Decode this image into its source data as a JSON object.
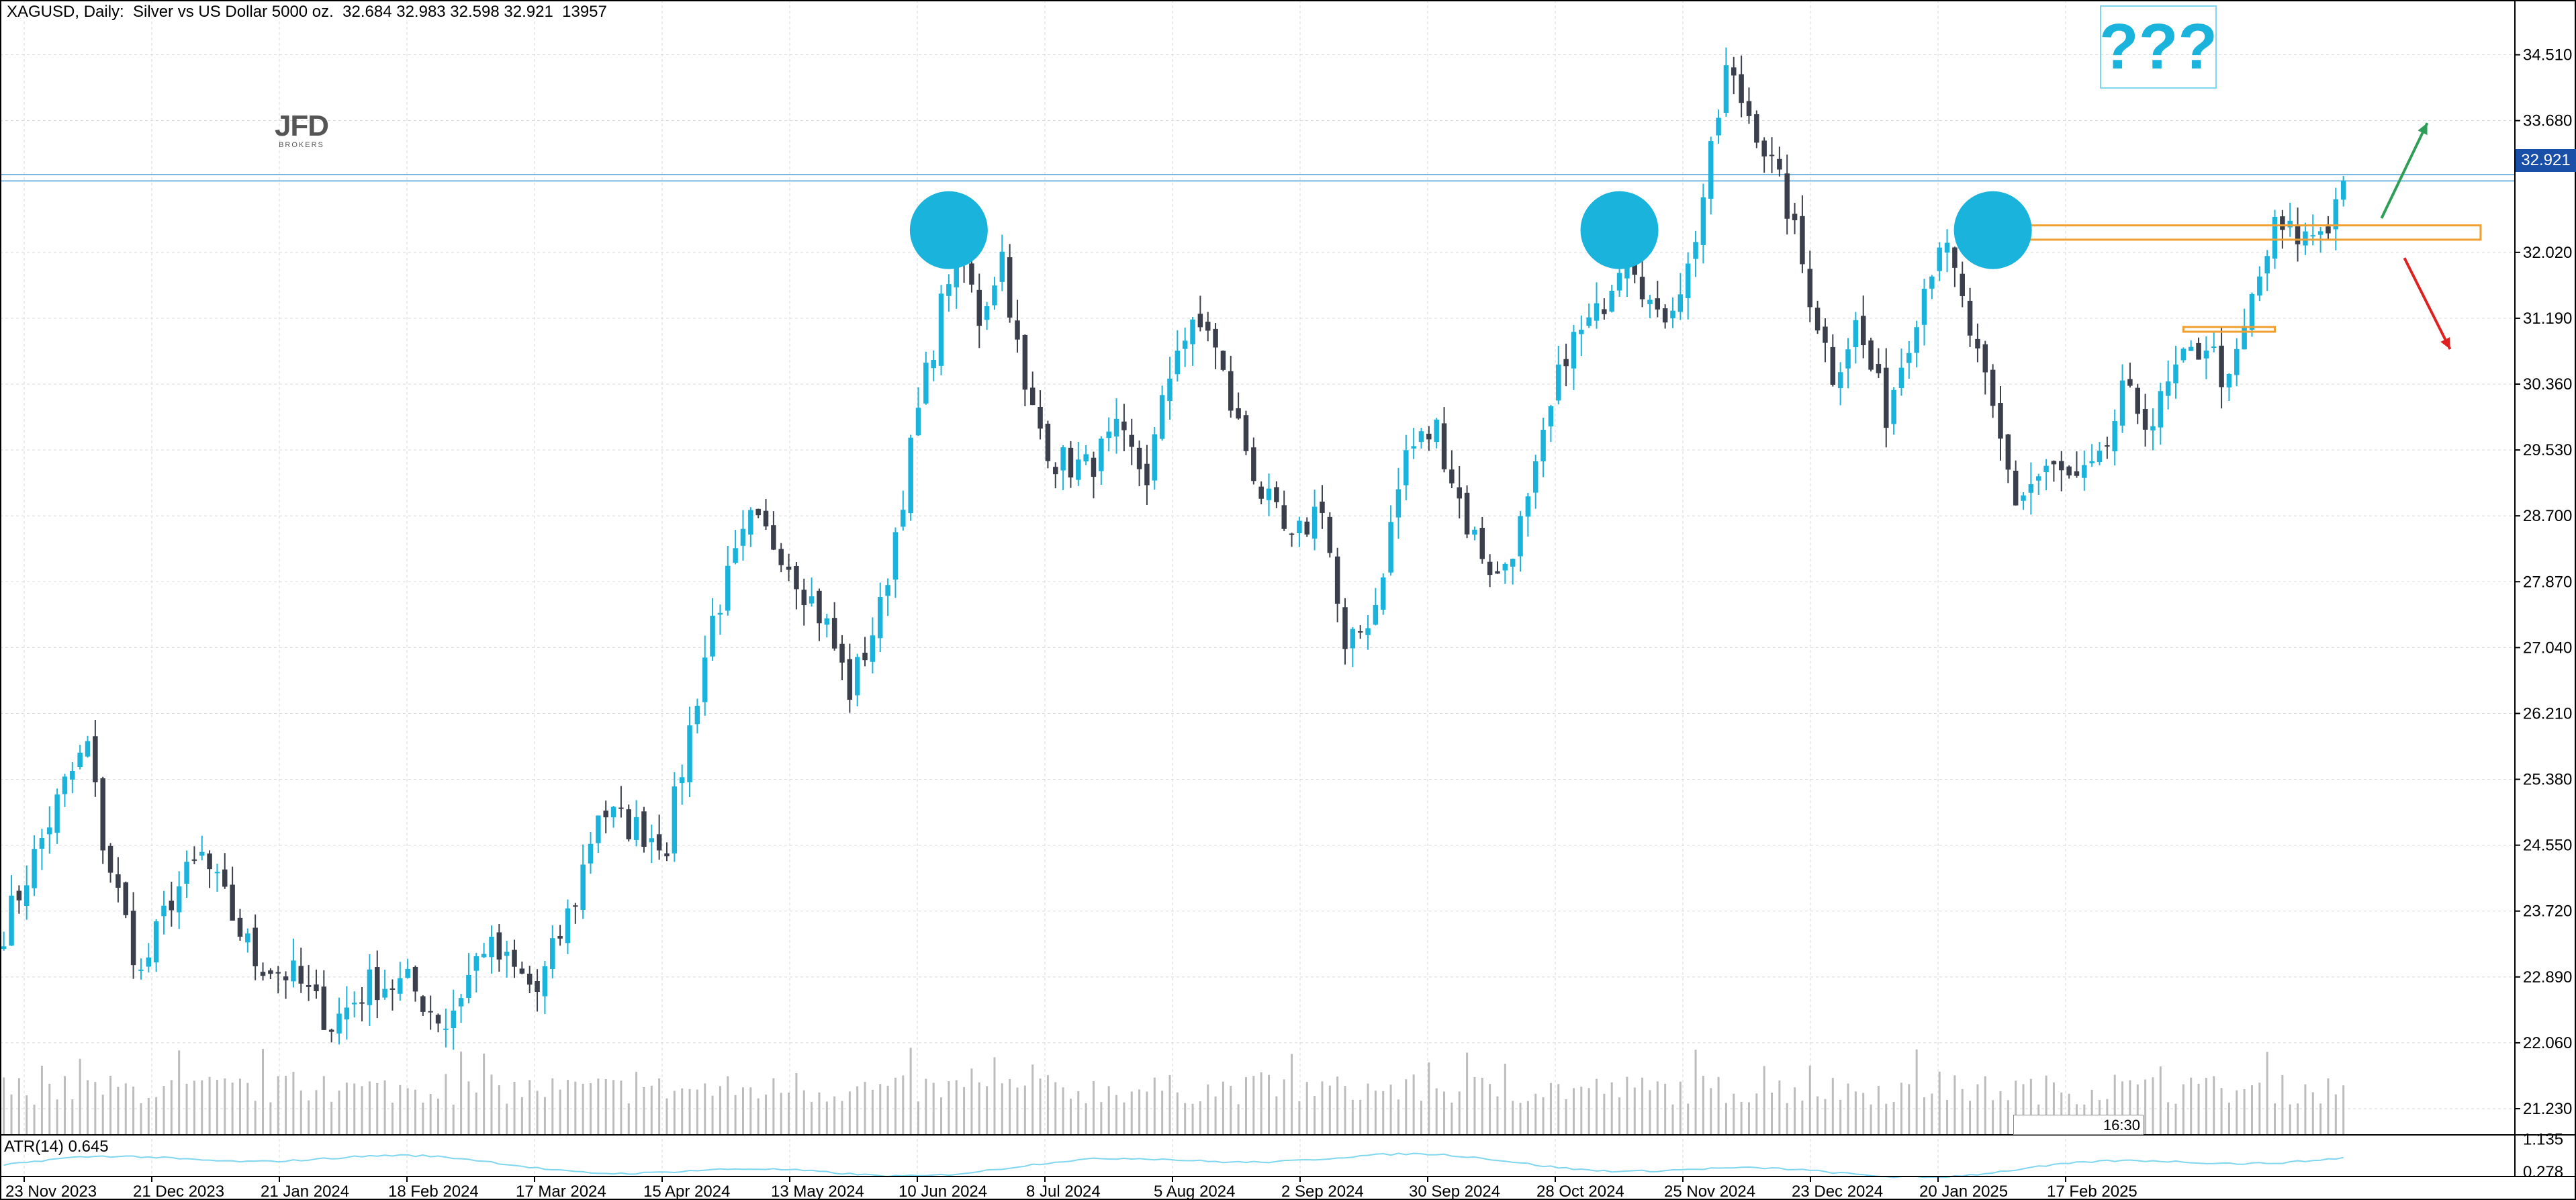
{
  "header": {
    "symbol_line": "XAGUSD, Daily:  Silver vs US Dollar 5000 oz.  32.684 32.983 32.598 32.921  13957"
  },
  "atr_label": "ATR(14) 0.645",
  "logo": {
    "main": "JFD",
    "sub": "BROKERS"
  },
  "annotation": {
    "question": "???"
  },
  "current_price_tag": "32.921",
  "time_box": "16:30",
  "colors": {
    "bull": "#1ab3dc",
    "bear": "#3a3f4b",
    "grid": "#d9d9d9",
    "circle": "#1ab3dc",
    "rect": "#f0a030",
    "arrow_up": "#2e9e57",
    "arrow_down": "#e02020",
    "hline": "#7ab8e0"
  },
  "chart_data": {
    "type": "candlestick",
    "title": "XAGUSD, Daily",
    "price_axis": {
      "ticks": [
        "34.510",
        "33.680",
        "32.921",
        "32.020",
        "31.190",
        "30.360",
        "29.530",
        "28.700",
        "27.870",
        "27.040",
        "26.210",
        "25.380",
        "24.550",
        "23.720",
        "22.890",
        "22.060",
        "21.230"
      ],
      "range": [
        20.9,
        35.2
      ]
    },
    "atr_axis": {
      "ticks": [
        "1.135",
        "0.278"
      ],
      "range": [
        0.15,
        1.25
      ]
    },
    "x_ticks": [
      "23 Nov 2023",
      "21 Dec 2023",
      "21 Jan 2024",
      "18 Feb 2024",
      "17 Mar 2024",
      "15 Apr 2024",
      "13 May 2024",
      "10 Jun 2024",
      "8 Jul 2024",
      "5 Aug 2024",
      "2 Sep 2024",
      "30 Sep 2024",
      "28 Oct 2024",
      "25 Nov 2024",
      "23 Dec 2024",
      "20 Jan 2025",
      "17 Feb 2025"
    ],
    "last_ohlc": {
      "open": 32.684,
      "high": 32.983,
      "low": 32.598,
      "close": 32.921,
      "volume": 13957
    },
    "atr_value": 0.645,
    "path_points": [
      [
        0,
        23.5
      ],
      [
        8,
        25.3
      ],
      [
        11,
        25.8
      ],
      [
        13,
        24.6
      ],
      [
        18,
        22.9
      ],
      [
        22,
        23.9
      ],
      [
        26,
        24.4
      ],
      [
        33,
        23.1
      ],
      [
        38,
        22.9
      ],
      [
        43,
        22.3
      ],
      [
        48,
        22.8
      ],
      [
        53,
        22.8
      ],
      [
        58,
        22.3
      ],
      [
        63,
        23.3
      ],
      [
        70,
        22.7
      ],
      [
        75,
        23.9
      ],
      [
        78,
        25.0
      ],
      [
        82,
        24.8
      ],
      [
        87,
        24.6
      ],
      [
        93,
        27.4
      ],
      [
        98,
        28.6
      ],
      [
        102,
        28.3
      ],
      [
        108,
        27.3
      ],
      [
        111,
        26.5
      ],
      [
        115,
        27.5
      ],
      [
        120,
        30.0
      ],
      [
        125,
        32.2
      ],
      [
        128,
        31.2
      ],
      [
        131,
        32.0
      ],
      [
        134,
        30.2
      ],
      [
        138,
        29.4
      ],
      [
        142,
        29.3
      ],
      [
        146,
        29.7
      ],
      [
        150,
        29.2
      ],
      [
        154,
        30.9
      ],
      [
        158,
        31.1
      ],
      [
        161,
        30.1
      ],
      [
        165,
        29.0
      ],
      [
        169,
        28.3
      ],
      [
        173,
        28.9
      ],
      [
        176,
        26.9
      ],
      [
        180,
        27.6
      ],
      [
        184,
        29.5
      ],
      [
        188,
        29.8
      ],
      [
        192,
        28.6
      ],
      [
        196,
        27.9
      ],
      [
        200,
        28.8
      ],
      [
        205,
        30.8
      ],
      [
        209,
        31.2
      ],
      [
        213,
        32.2
      ],
      [
        217,
        31.1
      ],
      [
        221,
        31.8
      ],
      [
        224,
        33.2
      ],
      [
        226,
        34.3
      ],
      [
        230,
        33.6
      ],
      [
        234,
        32.6
      ],
      [
        237,
        31.5
      ],
      [
        240,
        30.5
      ],
      [
        243,
        31.1
      ],
      [
        247,
        30.0
      ],
      [
        251,
        31.3
      ],
      [
        254,
        32.2
      ],
      [
        256,
        31.7
      ],
      [
        260,
        30.3
      ],
      [
        264,
        28.9
      ],
      [
        268,
        29.3
      ],
      [
        272,
        29.1
      ],
      [
        275,
        29.3
      ],
      [
        278,
        30.2
      ],
      [
        282,
        29.9
      ],
      [
        285,
        30.5
      ],
      [
        289,
        30.9
      ],
      [
        292,
        30.3
      ],
      [
        295,
        31.4
      ],
      [
        298,
        32.3
      ],
      [
        302,
        32.2
      ],
      [
        305,
        32.4
      ],
      [
        307,
        32.9
      ]
    ],
    "horizontal_lines": [
      32.921,
      33.0
    ],
    "circle_markers": [
      {
        "x_index": 124,
        "price": 32.3
      },
      {
        "x_index": 212,
        "price": 32.3
      },
      {
        "x_index": 261,
        "price": 32.3
      }
    ],
    "zone_rects": [
      {
        "from_index": 263,
        "to_index": 325,
        "price_low": 32.18,
        "price_high": 32.36
      },
      {
        "from_index": 286,
        "to_index": 298,
        "price_low": 31.02,
        "price_high": 31.08
      }
    ],
    "scenario_arrows": [
      {
        "direction": "up",
        "from_index": 312,
        "from_price": 32.45,
        "to_index": 318,
        "to_price": 33.65
      },
      {
        "direction": "down",
        "from_index": 315,
        "from_price": 31.95,
        "to_index": 321,
        "to_price": 30.8
      }
    ]
  }
}
